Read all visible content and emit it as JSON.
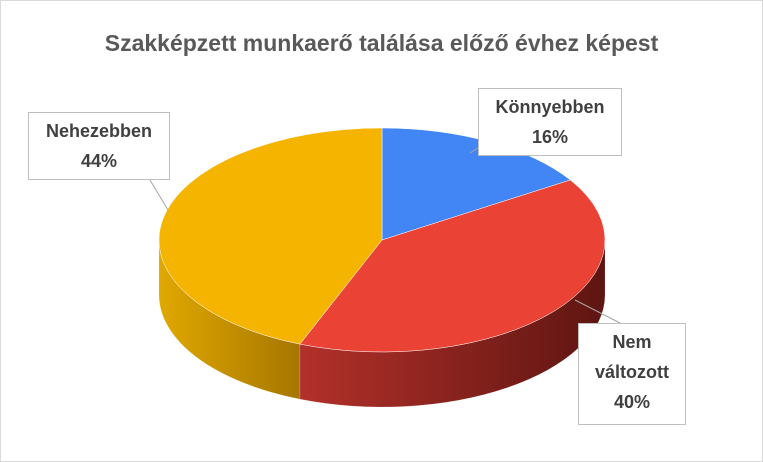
{
  "chart_data": {
    "type": "pie",
    "title": "Szakképzett munkaerő találása előző évhez képest",
    "categories": [
      "Könnyebben",
      "Nem változott",
      "Nehezebben"
    ],
    "values": [
      16,
      40,
      44
    ],
    "value_labels": [
      "16%",
      "40%",
      "44%"
    ],
    "colors": [
      "#4285f4",
      "#ea4335",
      "#f4b400"
    ]
  }
}
